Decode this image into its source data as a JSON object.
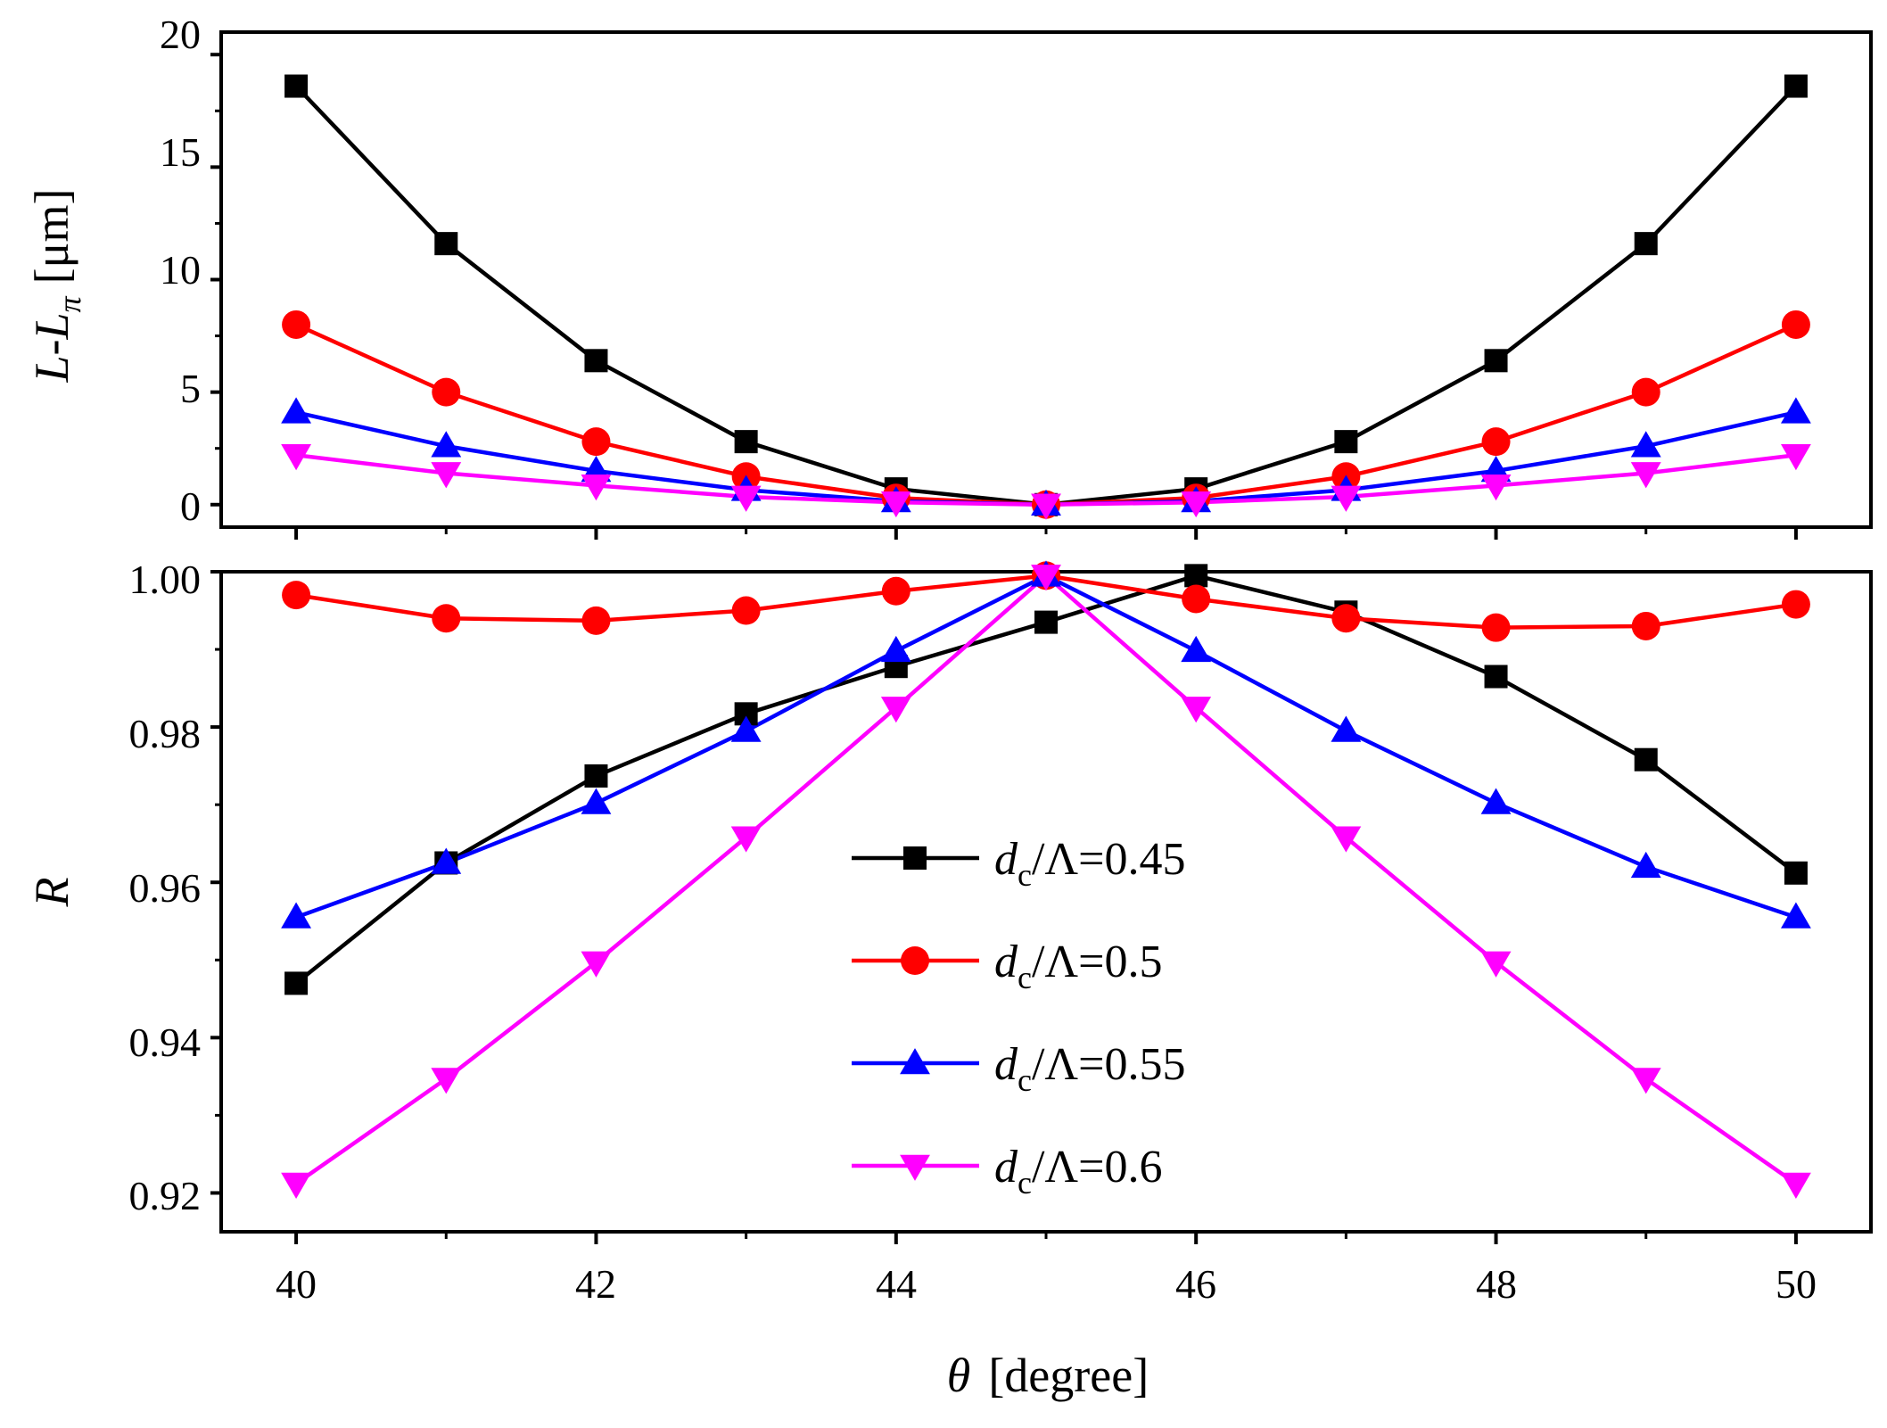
{
  "chart_data": [
    {
      "type": "line",
      "panel": "top",
      "x": [
        40,
        41,
        42,
        43,
        44,
        45,
        46,
        47,
        48,
        49,
        50
      ],
      "ylim": [
        -1,
        21
      ],
      "xlim": [
        39.5,
        50.5
      ],
      "yticks": [
        "0",
        "5",
        "10",
        "15",
        "20"
      ],
      "ylabel": {
        "main": "L-L",
        "sub": "π",
        "unit": "[μm]"
      },
      "series": [
        {
          "name": "d_c/Λ=0.45",
          "color": "#000000",
          "marker": "square",
          "values": [
            18.6,
            11.6,
            6.4,
            2.8,
            0.7,
            0.0,
            0.7,
            2.8,
            6.4,
            11.6,
            18.6
          ]
        },
        {
          "name": "d_c/Λ=0.5",
          "color": "#ff0000",
          "marker": "circle",
          "values": [
            8.0,
            5.0,
            2.8,
            1.25,
            0.3,
            0.0,
            0.3,
            1.25,
            2.8,
            5.0,
            8.0
          ]
        },
        {
          "name": "d_c/Λ=0.55",
          "color": "#0000ff",
          "marker": "triangle-up",
          "values": [
            4.1,
            2.6,
            1.5,
            0.65,
            0.15,
            0.0,
            0.15,
            0.65,
            1.5,
            2.6,
            4.1
          ]
        },
        {
          "name": "d_c/Λ=0.6",
          "color": "#ff00ff",
          "marker": "triangle-down",
          "values": [
            2.2,
            1.4,
            0.85,
            0.35,
            0.1,
            0.0,
            0.1,
            0.35,
            0.85,
            1.4,
            2.2
          ]
        }
      ]
    },
    {
      "type": "line",
      "panel": "bottom",
      "x": [
        40,
        41,
        42,
        43,
        44,
        45,
        46,
        47,
        48,
        49,
        50
      ],
      "ylim": [
        0.915,
        1.0
      ],
      "xlim": [
        39.5,
        50.5
      ],
      "yticks": [
        "0.92",
        "0.94",
        "0.96",
        "0.98",
        "1.00"
      ],
      "xticks": [
        "40",
        "42",
        "44",
        "46",
        "48",
        "50"
      ],
      "ylabel": "R",
      "xlabel": {
        "symbol": "θ",
        "unit": "[degree]"
      },
      "legend_position": "center",
      "series": [
        {
          "name": "d_c/Λ=0.45",
          "color": "#000000",
          "marker": "square",
          "legend": {
            "d": "d",
            "sub": "c",
            "rest": "/Λ=0.45"
          },
          "values": [
            0.947,
            0.9625,
            0.9737,
            0.9817,
            0.9878,
            0.9935,
            0.9995,
            0.9948,
            0.9865,
            0.9758,
            0.9612
          ]
        },
        {
          "name": "d_c/Λ=0.5",
          "color": "#ff0000",
          "marker": "circle",
          "legend": {
            "d": "d",
            "sub": "c",
            "rest": "/Λ=0.5"
          },
          "values": [
            0.997,
            0.994,
            0.9937,
            0.995,
            0.9975,
            0.9995,
            0.9965,
            0.994,
            0.9928,
            0.993,
            0.9958
          ]
        },
        {
          "name": "d_c/Λ=0.55",
          "color": "#0000ff",
          "marker": "triangle-up",
          "legend": {
            "d": "d",
            "sub": "c",
            "rest": "/Λ=0.55"
          },
          "values": [
            0.9555,
            0.9625,
            0.9702,
            0.9795,
            0.9898,
            0.9995,
            0.9898,
            0.9795,
            0.9702,
            0.962,
            0.9555
          ]
        },
        {
          "name": "d_c/Λ=0.6",
          "color": "#ff00ff",
          "marker": "triangle-down",
          "legend": {
            "d": "d",
            "sub": "c",
            "rest": "/Λ=0.6"
          },
          "values": [
            0.9212,
            0.9347,
            0.9497,
            0.9658,
            0.9825,
            0.9995,
            0.9825,
            0.9658,
            0.9497,
            0.9347,
            0.9212
          ]
        }
      ]
    }
  ]
}
